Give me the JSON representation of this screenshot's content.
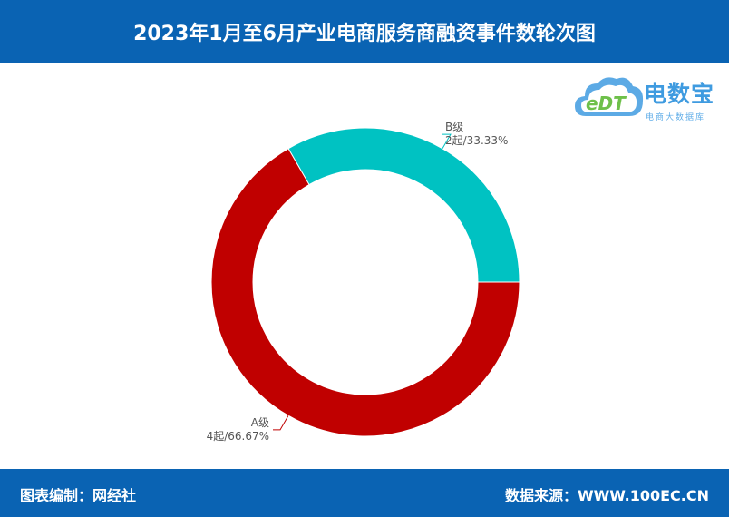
{
  "header": {
    "title": "2023年1月至6月产业电商服务商融资事件数轮次图"
  },
  "logo": {
    "name": "电数宝",
    "subtitle": "电商大数据库",
    "mark": "eDT"
  },
  "chart_data": {
    "type": "pie",
    "donut": true,
    "slices": [
      {
        "label": "B级",
        "value": 2,
        "value_text": "2起/33.33%",
        "percent": 33.33,
        "color": "#00c2c2"
      },
      {
        "label": "A级",
        "value": 4,
        "value_text": "4起/66.67%",
        "percent": 66.67,
        "color": "#c00000"
      }
    ]
  },
  "footer": {
    "left": "图表编制：网经社",
    "right": "数据来源：WWW.100EC.CN"
  }
}
